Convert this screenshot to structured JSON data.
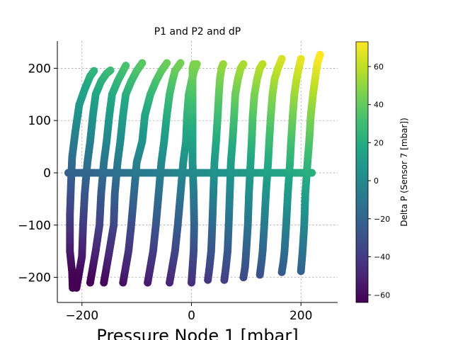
{
  "chart_data": {
    "type": "scatter",
    "title": "P1 and P2 and dP",
    "xlabel": "Pressure Node 1 [mbar]",
    "ylabel": "",
    "xlim": [
      -245,
      267
    ],
    "ylim": [
      -248,
      252
    ],
    "xticks": [
      -200,
      0,
      200
    ],
    "yticks": [
      -200,
      -100,
      0,
      100,
      200
    ],
    "xtick_labels": [
      "−200",
      "0",
      "200"
    ],
    "ytick_labels": [
      "−200",
      "−100",
      "0",
      "100",
      "200"
    ],
    "grid": true,
    "colormap": "viridis",
    "colorbar": {
      "label": "Delta P (Sensor 7 [mbar])",
      "range": [
        -64,
        73
      ],
      "ticks": [
        -60,
        -40,
        -20,
        0,
        20,
        40,
        60
      ],
      "tick_labels": [
        "−60",
        "−40",
        "−20",
        "0",
        "20",
        "40",
        "60"
      ]
    },
    "series": [
      {
        "trace": [
          [
            -217,
            -220
          ],
          [
            -218,
            -190
          ],
          [
            -222,
            -150
          ],
          [
            -222,
            -80
          ],
          [
            -220,
            -20
          ],
          [
            -218,
            30
          ],
          [
            -212,
            80
          ],
          [
            -205,
            130
          ],
          [
            -195,
            160
          ],
          [
            -185,
            185
          ],
          [
            -178,
            195
          ]
        ]
      },
      {
        "trace": [
          [
            -210,
            -220
          ],
          [
            -205,
            -190
          ],
          [
            -200,
            -160
          ],
          [
            -198,
            -100
          ],
          [
            -195,
            -40
          ],
          [
            -190,
            20
          ],
          [
            -185,
            60
          ],
          [
            -180,
            110
          ],
          [
            -175,
            150
          ],
          [
            -165,
            175
          ],
          [
            -155,
            190
          ],
          [
            -148,
            196
          ]
        ]
      },
      {
        "trace": [
          [
            -185,
            -210
          ],
          [
            -180,
            -180
          ],
          [
            -175,
            -150
          ],
          [
            -168,
            -100
          ],
          [
            -165,
            -40
          ],
          [
            -160,
            20
          ],
          [
            -155,
            60
          ],
          [
            -150,
            110
          ],
          [
            -145,
            150
          ],
          [
            -135,
            175
          ],
          [
            -125,
            195
          ],
          [
            -120,
            205
          ]
        ]
      },
      {
        "trace": [
          [
            -160,
            -210
          ],
          [
            -155,
            -180
          ],
          [
            -150,
            -150
          ],
          [
            -142,
            -100
          ],
          [
            -140,
            -40
          ],
          [
            -135,
            20
          ],
          [
            -130,
            60
          ],
          [
            -125,
            110
          ],
          [
            -120,
            150
          ],
          [
            -110,
            175
          ],
          [
            -100,
            195
          ],
          [
            -90,
            210
          ]
        ]
      },
      {
        "trace": [
          [
            -125,
            -210
          ],
          [
            -120,
            -180
          ],
          [
            -115,
            -150
          ],
          [
            -110,
            -100
          ],
          [
            -105,
            -40
          ],
          [
            -100,
            20
          ],
          [
            -90,
            60
          ],
          [
            -85,
            110
          ],
          [
            -75,
            150
          ],
          [
            -65,
            175
          ],
          [
            -55,
            195
          ],
          [
            -45,
            210
          ]
        ]
      },
      {
        "trace": [
          [
            -80,
            -210
          ],
          [
            -75,
            -180
          ],
          [
            -70,
            -150
          ],
          [
            -65,
            -100
          ],
          [
            -60,
            -40
          ],
          [
            -55,
            20
          ],
          [
            -50,
            60
          ],
          [
            -45,
            110
          ],
          [
            -40,
            150
          ],
          [
            -35,
            175
          ],
          [
            -30,
            195
          ],
          [
            -20,
            210
          ]
        ]
      },
      {
        "trace": [
          [
            -40,
            -210
          ],
          [
            -35,
            -180
          ],
          [
            -30,
            -150
          ],
          [
            -25,
            -100
          ],
          [
            -20,
            -40
          ],
          [
            -15,
            20
          ],
          [
            -10,
            60
          ],
          [
            -8,
            110
          ],
          [
            -5,
            150
          ],
          [
            0,
            175
          ],
          [
            5,
            195
          ],
          [
            10,
            208
          ]
        ]
      },
      {
        "trace": [
          [
            0,
            -210
          ],
          [
            2,
            -180
          ],
          [
            4,
            -150
          ],
          [
            5,
            -100
          ],
          [
            4,
            -40
          ],
          [
            2,
            20
          ],
          [
            2,
            60
          ],
          [
            2,
            110
          ],
          [
            2,
            150
          ],
          [
            2,
            180
          ],
          [
            2,
            200
          ],
          [
            4,
            208
          ]
        ]
      },
      {
        "trace": [
          [
            30,
            -205
          ],
          [
            33,
            -180
          ],
          [
            36,
            -150
          ],
          [
            38,
            -100
          ],
          [
            40,
            -40
          ],
          [
            42,
            20
          ],
          [
            45,
            60
          ],
          [
            48,
            110
          ],
          [
            50,
            150
          ],
          [
            52,
            180
          ],
          [
            55,
            200
          ],
          [
            58,
            208
          ]
        ]
      },
      {
        "trace": [
          [
            60,
            -205
          ],
          [
            63,
            -180
          ],
          [
            66,
            -150
          ],
          [
            68,
            -100
          ],
          [
            70,
            -40
          ],
          [
            72,
            20
          ],
          [
            75,
            60
          ],
          [
            78,
            110
          ],
          [
            80,
            150
          ],
          [
            85,
            180
          ],
          [
            90,
            200
          ],
          [
            95,
            208
          ]
        ]
      },
      {
        "trace": [
          [
            95,
            -200
          ],
          [
            98,
            -180
          ],
          [
            100,
            -150
          ],
          [
            103,
            -100
          ],
          [
            105,
            -40
          ],
          [
            108,
            20
          ],
          [
            110,
            60
          ],
          [
            112,
            110
          ],
          [
            115,
            150
          ],
          [
            120,
            180
          ],
          [
            125,
            200
          ],
          [
            130,
            208
          ]
        ]
      },
      {
        "trace": [
          [
            125,
            -195
          ],
          [
            128,
            -170
          ],
          [
            130,
            -150
          ],
          [
            133,
            -100
          ],
          [
            136,
            -40
          ],
          [
            140,
            20
          ],
          [
            142,
            60
          ],
          [
            145,
            110
          ],
          [
            148,
            150
          ],
          [
            152,
            180
          ],
          [
            158,
            200
          ],
          [
            165,
            218
          ]
        ]
      },
      {
        "trace": [
          [
            165,
            -190
          ],
          [
            168,
            -170
          ],
          [
            170,
            -150
          ],
          [
            173,
            -100
          ],
          [
            176,
            -40
          ],
          [
            180,
            20
          ],
          [
            182,
            60
          ],
          [
            185,
            110
          ],
          [
            188,
            150
          ],
          [
            192,
            180
          ],
          [
            196,
            200
          ],
          [
            200,
            218
          ]
        ]
      },
      {
        "trace": [
          [
            200,
            -188
          ],
          [
            203,
            -150
          ],
          [
            206,
            -100
          ],
          [
            208,
            -40
          ],
          [
            212,
            20
          ],
          [
            215,
            60
          ],
          [
            218,
            110
          ],
          [
            222,
            150
          ],
          [
            226,
            180
          ],
          [
            230,
            210
          ],
          [
            235,
            226
          ]
        ]
      }
    ],
    "horizontal_band": {
      "y": 0,
      "x_from": -225,
      "x_to": 220
    }
  }
}
